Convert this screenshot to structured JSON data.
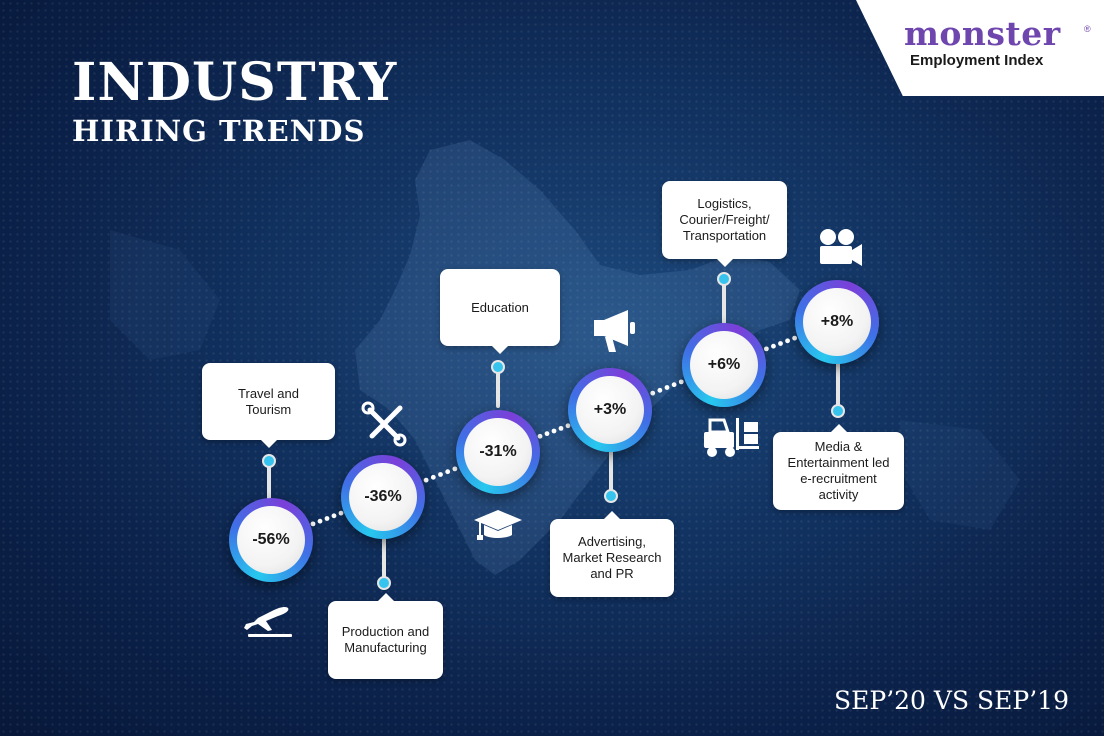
{
  "title": {
    "line1": "INDUSTRY",
    "line2": "HIRING TRENDS"
  },
  "logo": {
    "word": "monster",
    "registered": "®",
    "tagline": "Employment Index"
  },
  "period": "SEP’20 VS SEP’19",
  "colors": {
    "background": "#0b2149",
    "ring_start": "#27c8ee",
    "ring_end": "#7b3fd9",
    "logo_purple": "#6e46ad",
    "connector_dots": "#ffffff"
  },
  "industries": [
    {
      "name": "Travel and Tourism",
      "change": "-56%",
      "icon": "airplane-takeoff-icon"
    },
    {
      "name": "Production and Manufacturing",
      "change": "-36%",
      "icon": "wrench-screwdriver-icon"
    },
    {
      "name": "Education",
      "change": "-31%",
      "icon": "graduation-cap-icon"
    },
    {
      "name": "Advertising, Market Research and PR",
      "change": "+3%",
      "icon": "megaphone-icon"
    },
    {
      "name": "Logistics, Courier/Freight/ Transportation",
      "change": "+6%",
      "icon": "forklift-icon"
    },
    {
      "name": "Media & Entertainment led e-recruitment activity",
      "change": "+8%",
      "icon": "movie-camera-icon"
    }
  ]
}
